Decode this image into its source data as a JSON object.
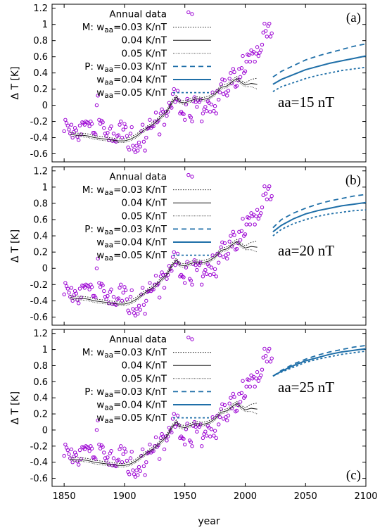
{
  "chart_data": {
    "type": "line",
    "xlabel": "year",
    "ylabel": "Δ T [K]",
    "xlim": [
      1840,
      2100
    ],
    "ylim": [
      -0.7,
      1.25
    ],
    "x_ticks": [
      "1850",
      "1900",
      "1950",
      "2000",
      "2050",
      "2100"
    ],
    "y_ticks": [
      "-0.6",
      "-0.4",
      "-0.2",
      "0",
      "0.2",
      "0.4",
      "0.6",
      "0.8",
      "1",
      "1.2"
    ],
    "colors": {
      "annual": "#9b00d3",
      "model": "#1a1a1a",
      "projection": "#1f6fa8"
    },
    "legend": {
      "annual": "Annual data",
      "m_prefix": "M:",
      "p_prefix": "P:",
      "w": "w",
      "aa": "aa",
      "first_rest": "=0.03 K/nT",
      "rest_004": "=0.04 K/nT",
      "rest_005": "=0.05 K/nT",
      "plain_004": "0.04 K/nT",
      "plain_005": "0.05 K/nT"
    },
    "panels": [
      {
        "label": "(a)",
        "annotation": "aa=15 nT",
        "projections": {
          "x": [
            2023,
            2030,
            2040,
            2050,
            2060,
            2070,
            2080,
            2090,
            2100
          ],
          "w003": [
            0.35,
            0.42,
            0.49,
            0.56,
            0.61,
            0.65,
            0.69,
            0.73,
            0.76
          ],
          "w004": [
            0.26,
            0.32,
            0.38,
            0.44,
            0.48,
            0.52,
            0.55,
            0.58,
            0.61
          ],
          "w005": [
            0.17,
            0.23,
            0.28,
            0.33,
            0.37,
            0.4,
            0.43,
            0.45,
            0.47
          ]
        }
      },
      {
        "label": "(b)",
        "annotation": "aa=20 nT",
        "projections": {
          "x": [
            2023,
            2030,
            2040,
            2050,
            2060,
            2070,
            2080,
            2090,
            2100
          ],
          "w003": [
            0.5,
            0.6,
            0.68,
            0.74,
            0.79,
            0.83,
            0.86,
            0.89,
            0.91
          ],
          "w004": [
            0.45,
            0.53,
            0.61,
            0.67,
            0.71,
            0.74,
            0.77,
            0.79,
            0.81
          ],
          "w005": [
            0.4,
            0.48,
            0.55,
            0.6,
            0.64,
            0.67,
            0.69,
            0.71,
            0.72
          ]
        }
      },
      {
        "label": "(c)",
        "annotation": "aa=25 nT",
        "projections": {
          "x": [
            2023,
            2030,
            2040,
            2050,
            2060,
            2070,
            2080,
            2090,
            2100
          ],
          "w003": [
            0.67,
            0.74,
            0.82,
            0.88,
            0.93,
            0.97,
            1.0,
            1.03,
            1.05
          ],
          "w004": [
            0.67,
            0.73,
            0.8,
            0.86,
            0.9,
            0.94,
            0.97,
            0.99,
            1.01
          ],
          "w005": [
            0.67,
            0.72,
            0.78,
            0.84,
            0.88,
            0.91,
            0.94,
            0.96,
            0.98
          ]
        }
      }
    ],
    "model_base": {
      "x": [
        1855,
        1860,
        1865,
        1870,
        1875,
        1880,
        1885,
        1890,
        1895,
        1900,
        1905,
        1910,
        1915,
        1920,
        1925,
        1930,
        1935,
        1940,
        1943,
        1946,
        1950,
        1955,
        1960,
        1965,
        1970,
        1975,
        1980,
        1985,
        1990,
        1993,
        1996,
        2000,
        2005,
        2010
      ],
      "y": [
        -0.36,
        -0.37,
        -0.37,
        -0.38,
        -0.4,
        -0.41,
        -0.42,
        -0.43,
        -0.44,
        -0.44,
        -0.42,
        -0.38,
        -0.32,
        -0.27,
        -0.22,
        -0.15,
        -0.08,
        0.05,
        0.1,
        0.04,
        0.03,
        0.06,
        0.08,
        0.07,
        0.09,
        0.14,
        0.22,
        0.24,
        0.3,
        0.33,
        0.29,
        0.25,
        0.27,
        0.26
      ]
    },
    "annual_data": {
      "x": [
        1850,
        1851,
        1852,
        1853,
        1854,
        1855,
        1856,
        1857,
        1858,
        1859,
        1860,
        1861,
        1862,
        1863,
        1864,
        1865,
        1866,
        1867,
        1868,
        1869,
        1870,
        1871,
        1872,
        1873,
        1874,
        1875,
        1876,
        1877,
        1878,
        1879,
        1880,
        1881,
        1882,
        1883,
        1884,
        1885,
        1886,
        1887,
        1888,
        1889,
        1890,
        1891,
        1892,
        1893,
        1894,
        1895,
        1896,
        1897,
        1898,
        1899,
        1900,
        1901,
        1902,
        1903,
        1904,
        1905,
        1906,
        1907,
        1908,
        1909,
        1910,
        1911,
        1912,
        1913,
        1914,
        1915,
        1916,
        1917,
        1918,
        1919,
        1920,
        1921,
        1922,
        1923,
        1924,
        1925,
        1926,
        1927,
        1928,
        1929,
        1930,
        1931,
        1932,
        1933,
        1934,
        1935,
        1936,
        1937,
        1938,
        1939,
        1940,
        1941,
        1942,
        1943,
        1944,
        1945,
        1946,
        1947,
        1948,
        1949,
        1950,
        1951,
        1952,
        1953,
        1954,
        1955,
        1956,
        1957,
        1958,
        1959,
        1960,
        1961,
        1962,
        1963,
        1964,
        1965,
        1966,
        1967,
        1968,
        1969,
        1970,
        1971,
        1972,
        1973,
        1974,
        1975,
        1976,
        1977,
        1978,
        1979,
        1980,
        1981,
        1982,
        1983,
        1984,
        1985,
        1986,
        1987,
        1988,
        1989,
        1990,
        1991,
        1992,
        1993,
        1994,
        1995,
        1996,
        1997,
        1998,
        1999,
        2000,
        2001,
        2002,
        2003,
        2004,
        2005,
        2006,
        2007,
        2008,
        2009,
        2010,
        2011,
        2012,
        2013,
        2014,
        2015,
        2016,
        2017,
        2018,
        2019,
        2020,
        2021,
        2022
      ],
      "y": [
        -0.32,
        -0.18,
        -0.22,
        -0.25,
        -0.3,
        -0.35,
        -0.24,
        -0.4,
        -0.33,
        -0.28,
        -0.31,
        -0.39,
        -0.43,
        -0.25,
        -0.36,
        -0.21,
        -0.22,
        -0.24,
        -0.2,
        -0.21,
        -0.22,
        -0.26,
        -0.2,
        -0.23,
        -0.34,
        -0.34,
        -0.36,
        0.0,
        0.12,
        -0.18,
        -0.23,
        -0.19,
        -0.21,
        -0.28,
        -0.35,
        -0.38,
        -0.34,
        -0.43,
        -0.29,
        -0.26,
        -0.44,
        -0.35,
        -0.44,
        -0.45,
        -0.38,
        -0.37,
        -0.24,
        -0.2,
        -0.4,
        -0.3,
        -0.23,
        -0.27,
        -0.38,
        -0.52,
        -0.55,
        -0.35,
        -0.27,
        -0.5,
        -0.55,
        -0.58,
        -0.5,
        -0.56,
        -0.46,
        -0.51,
        -0.32,
        -0.24,
        -0.45,
        -0.56,
        -0.4,
        -0.29,
        -0.28,
        -0.18,
        -0.28,
        -0.26,
        -0.26,
        -0.2,
        -0.09,
        -0.21,
        -0.19,
        -0.36,
        -0.1,
        -0.05,
        -0.08,
        -0.24,
        -0.08,
        -0.13,
        -0.08,
        0.03,
        -0.01,
        -0.03,
        0.14,
        0.2,
        0.04,
        0.08,
        0.18,
        0.06,
        -0.1,
        -0.08,
        -0.1,
        -0.11,
        -0.18,
        0.01,
        0.08,
        1.15,
        -0.13,
        -0.15,
        -0.2,
        0.05,
        0.1,
        0.04,
        -0.02,
        0.06,
        0.04,
        0.07,
        -0.2,
        -0.1,
        -0.05,
        -0.02,
        -0.07,
        0.05,
        0.03,
        -0.08,
        0.01,
        0.16,
        -0.07,
        -0.01,
        -0.1,
        0.18,
        0.07,
        0.16,
        0.26,
        0.32,
        0.14,
        0.31,
        0.16,
        0.12,
        0.18,
        0.33,
        0.4,
        0.27,
        0.45,
        0.41,
        0.23,
        0.24,
        0.31,
        0.45,
        0.35,
        0.46,
        0.61,
        0.4,
        0.42,
        0.54,
        0.63,
        0.62,
        0.54,
        0.68,
        0.64,
        0.66,
        0.54,
        0.64,
        0.72,
        0.61,
        0.65,
        0.68,
        0.75,
        0.9,
        1.01,
        0.92,
        0.85,
        0.98,
        1.01,
        0.85,
        0.89
      ]
    }
  }
}
